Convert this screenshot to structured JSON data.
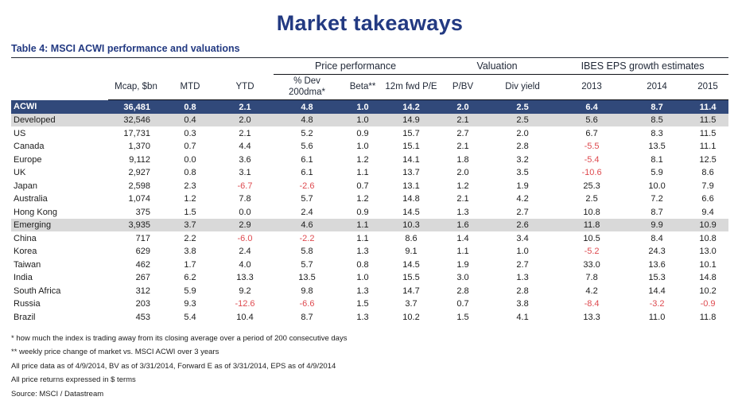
{
  "title": "Market takeaways",
  "caption": "Table 4: MSCI ACWI performance and valuations",
  "colors": {
    "accent_navy": "#233A82",
    "navy_row_bg": "#31497A",
    "stripe_gray": "#D9D9D9",
    "negative_red": "#DE4A4F"
  },
  "table": {
    "groups": [
      {
        "label": "Price performance",
        "span": 3
      },
      {
        "label": "Valuation",
        "span": 2
      },
      {
        "label": "IBES EPS growth estimates",
        "span": 3
      }
    ],
    "columns": [
      "",
      "Mcap, $bn",
      "MTD",
      "YTD",
      "% Dev\n200dma*",
      "Beta**",
      "12m fwd P/E",
      "P/BV",
      "Div yield",
      "2013",
      "2014",
      "2015"
    ],
    "rows": [
      {
        "label": "ACWI",
        "style": "navy",
        "values": [
          "36,481",
          "0.8",
          "2.1",
          "4.8",
          "1.0",
          "14.2",
          "2.0",
          "2.5",
          "6.4",
          "8.7",
          "11.4"
        ]
      },
      {
        "label": "Developed",
        "style": "gray",
        "values": [
          "32,546",
          "0.4",
          "2.0",
          "4.8",
          "1.0",
          "14.9",
          "2.1",
          "2.5",
          "5.6",
          "8.5",
          "11.5"
        ]
      },
      {
        "label": "US",
        "style": "",
        "values": [
          "17,731",
          "0.3",
          "2.1",
          "5.2",
          "0.9",
          "15.7",
          "2.7",
          "2.0",
          "6.7",
          "8.3",
          "11.5"
        ]
      },
      {
        "label": "Canada",
        "style": "",
        "values": [
          "1,370",
          "0.7",
          "4.4",
          "5.6",
          "1.0",
          "15.1",
          "2.1",
          "2.8",
          "-5.5",
          "13.5",
          "11.1"
        ]
      },
      {
        "label": "Europe",
        "style": "",
        "values": [
          "9,112",
          "0.0",
          "3.6",
          "6.1",
          "1.2",
          "14.1",
          "1.8",
          "3.2",
          "-5.4",
          "8.1",
          "12.5"
        ]
      },
      {
        "label": "UK",
        "style": "",
        "values": [
          "2,927",
          "0.8",
          "3.1",
          "6.1",
          "1.1",
          "13.7",
          "2.0",
          "3.5",
          "-10.6",
          "5.9",
          "8.6"
        ]
      },
      {
        "label": "Japan",
        "style": "",
        "values": [
          "2,598",
          "2.3",
          "-6.7",
          "-2.6",
          "0.7",
          "13.1",
          "1.2",
          "1.9",
          "25.3",
          "10.0",
          "7.9"
        ]
      },
      {
        "label": "Australia",
        "style": "",
        "values": [
          "1,074",
          "1.2",
          "7.8",
          "5.7",
          "1.2",
          "14.8",
          "2.1",
          "4.2",
          "2.5",
          "7.2",
          "6.6"
        ]
      },
      {
        "label": "Hong Kong",
        "style": "",
        "values": [
          "375",
          "1.5",
          "0.0",
          "2.4",
          "0.9",
          "14.5",
          "1.3",
          "2.7",
          "10.8",
          "8.7",
          "9.4"
        ]
      },
      {
        "label": "Emerging",
        "style": "gray",
        "values": [
          "3,935",
          "3.7",
          "2.9",
          "4.6",
          "1.1",
          "10.3",
          "1.6",
          "2.6",
          "11.8",
          "9.9",
          "10.9"
        ]
      },
      {
        "label": "China",
        "style": "",
        "values": [
          "717",
          "2.2",
          "-6.0",
          "-2.2",
          "1.1",
          "8.6",
          "1.4",
          "3.4",
          "10.5",
          "8.4",
          "10.8"
        ]
      },
      {
        "label": "Korea",
        "style": "",
        "values": [
          "629",
          "3.8",
          "2.4",
          "5.8",
          "1.3",
          "9.1",
          "1.1",
          "1.0",
          "-5.2",
          "24.3",
          "13.0"
        ]
      },
      {
        "label": "Taiwan",
        "style": "",
        "values": [
          "462",
          "1.7",
          "4.0",
          "5.7",
          "0.8",
          "14.5",
          "1.9",
          "2.7",
          "33.0",
          "13.6",
          "10.1"
        ]
      },
      {
        "label": "India",
        "style": "",
        "values": [
          "267",
          "6.2",
          "13.3",
          "13.5",
          "1.0",
          "15.5",
          "3.0",
          "1.3",
          "7.8",
          "15.3",
          "14.8"
        ]
      },
      {
        "label": "South Africa",
        "style": "",
        "values": [
          "312",
          "5.9",
          "9.2",
          "9.8",
          "1.3",
          "14.7",
          "2.8",
          "2.8",
          "4.2",
          "14.4",
          "10.2"
        ]
      },
      {
        "label": "Russia",
        "style": "",
        "values": [
          "203",
          "9.3",
          "-12.6",
          "-6.6",
          "1.5",
          "3.7",
          "0.7",
          "3.8",
          "-8.4",
          "-3.2",
          "-0.9"
        ]
      },
      {
        "label": "Brazil",
        "style": "",
        "values": [
          "453",
          "5.4",
          "10.4",
          "8.7",
          "1.3",
          "10.2",
          "1.5",
          "4.1",
          "13.3",
          "11.0",
          "11.8"
        ]
      }
    ]
  },
  "footnotes": [
    "* how much the index is trading away from its closing average over a period of 200 consecutive days",
    "** weekly price change of market vs. MSCI ACWI over 3 years",
    "All price data as of 4/9/2014, BV as of 3/31/2014, Forward E as of 3/31/2014, EPS as of 4/9/2014",
    "All price returns expressed in $ terms",
    "Source: MSCI / Datastream"
  ]
}
